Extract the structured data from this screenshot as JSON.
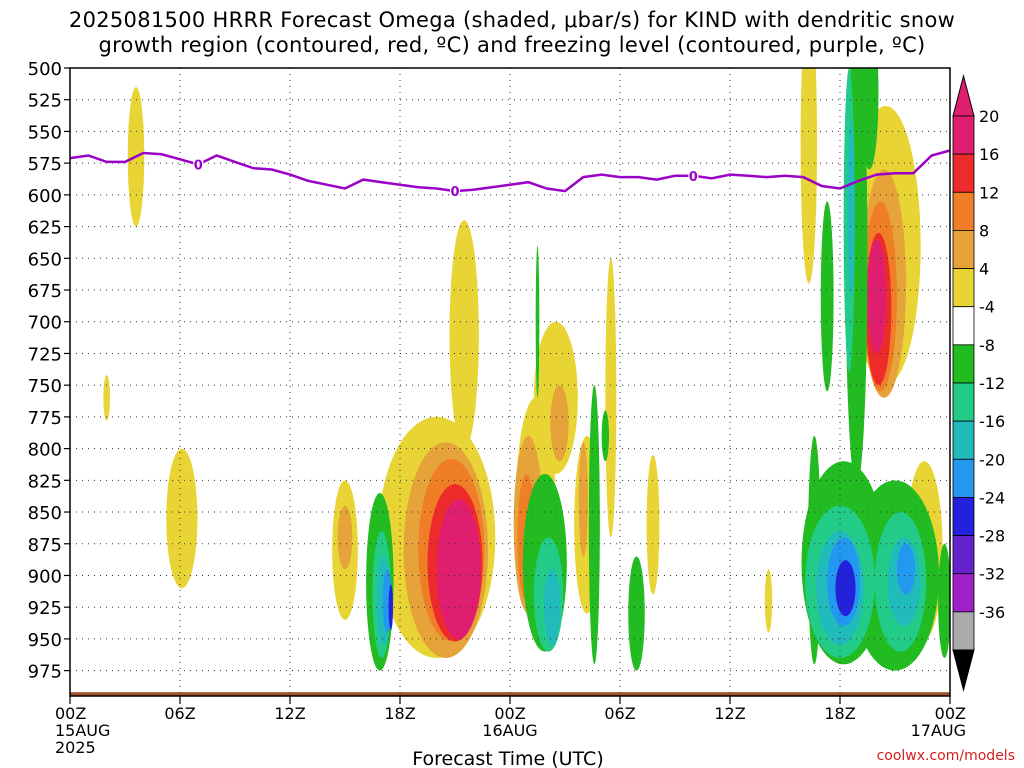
{
  "title_line1": "2025081500 HRRR Forecast Omega (shaded, μbar/s) for KIND with dendritic snow",
  "title_line2": "growth region (contoured, red, ºC) and freezing level (contoured, purple, ºC)",
  "credit": "coolwx.com/models",
  "chart_data": {
    "type": "heatmap",
    "xlabel": "Forecast Time (UTC)",
    "ylabel": "",
    "xlim": [
      0,
      48
    ],
    "ylim": [
      500,
      995
    ],
    "x_ticks": [
      {
        "x": 0,
        "label": "00Z",
        "sub": "15AUG",
        "sub2": "2025"
      },
      {
        "x": 6,
        "label": "06Z"
      },
      {
        "x": 12,
        "label": "12Z"
      },
      {
        "x": 18,
        "label": "18Z"
      },
      {
        "x": 24,
        "label": "00Z",
        "sub": "16AUG"
      },
      {
        "x": 30,
        "label": "06Z"
      },
      {
        "x": 36,
        "label": "12Z"
      },
      {
        "x": 42,
        "label": "18Z"
      },
      {
        "x": 48,
        "label": "00Z",
        "sub": "17AUG"
      }
    ],
    "y_ticks": [
      500,
      525,
      550,
      575,
      600,
      625,
      650,
      675,
      700,
      725,
      750,
      775,
      800,
      825,
      850,
      875,
      900,
      925,
      950,
      975
    ],
    "grid": true,
    "colorbar": {
      "levels": [
        -36,
        -32,
        -28,
        -24,
        -20,
        -16,
        -12,
        -8,
        -4,
        4,
        8,
        12,
        16,
        20
      ],
      "labels": [
        "20",
        "16",
        "12",
        "8",
        "4",
        "-4",
        "-8",
        "-12",
        "-16",
        "-20",
        "-24",
        "-28",
        "-32",
        "-36"
      ],
      "colors_top_to_bottom": [
        "#e01e70",
        "#ee2b2b",
        "#f07e27",
        "#e5a33a",
        "#e8d535",
        "#ffffff",
        "#22bb22",
        "#22cc88",
        "#22bbbb",
        "#2299ee",
        "#2222dd",
        "#6622cc",
        "#a020c8",
        "#aaaaaa"
      ],
      "over_color": "#e01e70",
      "under_color": "#000000"
    },
    "freezing_level": {
      "name": "0",
      "color": "#9a00c8",
      "x": [
        0,
        1,
        2,
        3,
        4,
        5,
        6,
        7,
        8,
        9,
        10,
        11,
        12,
        13,
        14,
        15,
        16,
        17,
        18,
        19,
        20,
        21,
        22,
        23,
        24,
        25,
        26,
        27,
        28,
        29,
        30,
        31,
        32,
        33,
        34,
        35,
        36,
        37,
        38,
        39,
        40,
        41,
        42,
        43,
        44,
        45,
        46,
        47,
        48
      ],
      "y": [
        571,
        569,
        574,
        574,
        567,
        568,
        572,
        576,
        569,
        574,
        579,
        580,
        584,
        589,
        592,
        595,
        588,
        590,
        592,
        594,
        595,
        597,
        596,
        594,
        592,
        590,
        595,
        597,
        586,
        584,
        586,
        586,
        588,
        585,
        585,
        587,
        584,
        585,
        586,
        585,
        586,
        593,
        595,
        589,
        584,
        583,
        583,
        569,
        565
      ],
      "labels_at_x": [
        7,
        21,
        34
      ]
    },
    "blobs": [
      {
        "c": 0,
        "x": 3.6,
        "y": 570,
        "sx": 0.45,
        "sy": 55
      },
      {
        "c": 0,
        "x": 2.0,
        "y": 760,
        "sx": 0.18,
        "sy": 18
      },
      {
        "c": 0,
        "x": 6.1,
        "y": 855,
        "sx": 0.85,
        "sy": 55
      },
      {
        "c": 0,
        "x": 15.0,
        "y": 880,
        "sx": 0.7,
        "sy": 55
      },
      {
        "c": 0,
        "x": 20.0,
        "y": 870,
        "sx": 3.2,
        "sy": 95
      },
      {
        "c": 0,
        "x": 21.5,
        "y": 710,
        "sx": 0.8,
        "sy": 90
      },
      {
        "c": 0,
        "x": 25.4,
        "y": 850,
        "sx": 1.1,
        "sy": 90
      },
      {
        "c": 0,
        "x": 26.5,
        "y": 760,
        "sx": 1.2,
        "sy": 60
      },
      {
        "c": 0,
        "x": 28.2,
        "y": 860,
        "sx": 0.7,
        "sy": 70
      },
      {
        "c": 0,
        "x": 29.5,
        "y": 760,
        "sx": 0.3,
        "sy": 110
      },
      {
        "c": 0,
        "x": 31.8,
        "y": 860,
        "sx": 0.35,
        "sy": 55
      },
      {
        "c": 0,
        "x": 40.3,
        "y": 560,
        "sx": 0.45,
        "sy": 110
      },
      {
        "c": 0,
        "x": 43.3,
        "y": 550,
        "sx": 0.55,
        "sy": 60
      },
      {
        "c": 0,
        "x": 44.5,
        "y": 640,
        "sx": 1.9,
        "sy": 110
      },
      {
        "c": 0,
        "x": 46.6,
        "y": 880,
        "sx": 1.0,
        "sy": 70
      },
      {
        "c": 0,
        "x": 38.1,
        "y": 920,
        "sx": 0.2,
        "sy": 25
      },
      {
        "c": 1,
        "x": 15.0,
        "y": 870,
        "sx": 0.4,
        "sy": 25
      },
      {
        "c": 1,
        "x": 20.5,
        "y": 880,
        "sx": 2.3,
        "sy": 85
      },
      {
        "c": 1,
        "x": 25.0,
        "y": 860,
        "sx": 0.8,
        "sy": 70
      },
      {
        "c": 1,
        "x": 26.7,
        "y": 780,
        "sx": 0.5,
        "sy": 30
      },
      {
        "c": 1,
        "x": 28.0,
        "y": 840,
        "sx": 0.25,
        "sy": 45
      },
      {
        "c": 1,
        "x": 44.4,
        "y": 670,
        "sx": 1.2,
        "sy": 90
      },
      {
        "c": 2,
        "x": 20.8,
        "y": 880,
        "sx": 1.8,
        "sy": 72
      },
      {
        "c": 2,
        "x": 24.9,
        "y": 870,
        "sx": 0.5,
        "sy": 50
      },
      {
        "c": 2,
        "x": 44.2,
        "y": 680,
        "sx": 0.9,
        "sy": 75
      },
      {
        "c": 3,
        "x": 21.0,
        "y": 890,
        "sx": 1.5,
        "sy": 62
      },
      {
        "c": 3,
        "x": 44.1,
        "y": 690,
        "sx": 0.7,
        "sy": 60
      },
      {
        "c": 4,
        "x": 21.2,
        "y": 895,
        "sx": 1.2,
        "sy": 55
      },
      {
        "c": 4,
        "x": 44.0,
        "y": 680,
        "sx": 0.5,
        "sy": 45
      },
      {
        "c": 5,
        "x": 16.9,
        "y": 905,
        "sx": 0.75,
        "sy": 70
      },
      {
        "c": 5,
        "x": 25.9,
        "y": 890,
        "sx": 1.2,
        "sy": 70
      },
      {
        "c": 5,
        "x": 25.5,
        "y": 700,
        "sx": 0.1,
        "sy": 60
      },
      {
        "c": 5,
        "x": 28.6,
        "y": 860,
        "sx": 0.3,
        "sy": 110
      },
      {
        "c": 5,
        "x": 29.2,
        "y": 790,
        "sx": 0.2,
        "sy": 20
      },
      {
        "c": 5,
        "x": 30.9,
        "y": 930,
        "sx": 0.45,
        "sy": 45
      },
      {
        "c": 5,
        "x": 42.2,
        "y": 890,
        "sx": 2.3,
        "sy": 80
      },
      {
        "c": 5,
        "x": 45.0,
        "y": 900,
        "sx": 2.4,
        "sy": 75
      },
      {
        "c": 5,
        "x": 40.6,
        "y": 880,
        "sx": 0.35,
        "sy": 90
      },
      {
        "c": 5,
        "x": 41.3,
        "y": 680,
        "sx": 0.35,
        "sy": 75
      },
      {
        "c": 5,
        "x": 42.9,
        "y": 650,
        "sx": 0.6,
        "sy": 180
      },
      {
        "c": 5,
        "x": 43.6,
        "y": 520,
        "sx": 0.5,
        "sy": 60
      },
      {
        "c": 5,
        "x": 47.7,
        "y": 920,
        "sx": 0.35,
        "sy": 45
      },
      {
        "c": 6,
        "x": 17.0,
        "y": 915,
        "sx": 0.5,
        "sy": 50
      },
      {
        "c": 6,
        "x": 26.1,
        "y": 915,
        "sx": 0.8,
        "sy": 45
      },
      {
        "c": 6,
        "x": 42.0,
        "y": 905,
        "sx": 1.9,
        "sy": 60
      },
      {
        "c": 6,
        "x": 45.3,
        "y": 905,
        "sx": 1.4,
        "sy": 55
      },
      {
        "c": 6,
        "x": 42.5,
        "y": 620,
        "sx": 0.3,
        "sy": 120
      },
      {
        "c": 7,
        "x": 17.1,
        "y": 920,
        "sx": 0.35,
        "sy": 35
      },
      {
        "c": 7,
        "x": 26.3,
        "y": 925,
        "sx": 0.45,
        "sy": 30
      },
      {
        "c": 7,
        "x": 42.0,
        "y": 910,
        "sx": 1.3,
        "sy": 45
      },
      {
        "c": 7,
        "x": 45.5,
        "y": 905,
        "sx": 0.9,
        "sy": 35
      },
      {
        "c": 7,
        "x": 42.6,
        "y": 610,
        "sx": 0.2,
        "sy": 70
      },
      {
        "c": 8,
        "x": 17.3,
        "y": 920,
        "sx": 0.25,
        "sy": 25
      },
      {
        "c": 8,
        "x": 42.2,
        "y": 905,
        "sx": 0.9,
        "sy": 35
      },
      {
        "c": 8,
        "x": 45.6,
        "y": 895,
        "sx": 0.5,
        "sy": 20
      },
      {
        "c": 9,
        "x": 17.5,
        "y": 925,
        "sx": 0.12,
        "sy": 18
      },
      {
        "c": 9,
        "x": 42.3,
        "y": 910,
        "sx": 0.55,
        "sy": 22
      }
    ],
    "terrain": {
      "top": 992,
      "color": "#a0522d"
    }
  }
}
